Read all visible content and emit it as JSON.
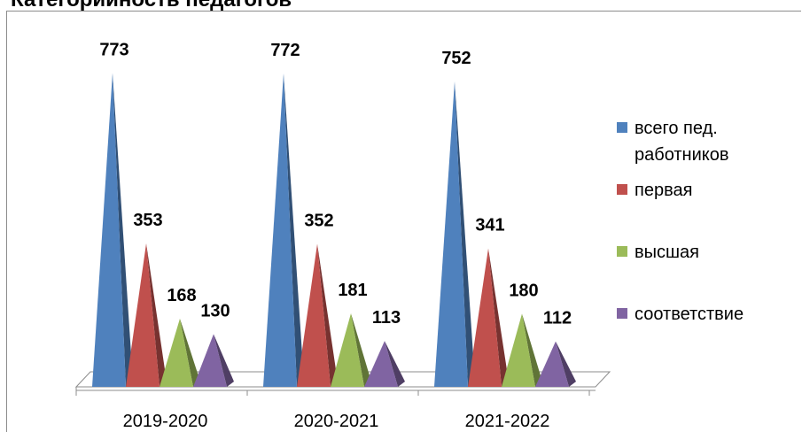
{
  "chart_data": {
    "type": "bar",
    "title": "Категорийность педагогов",
    "categories": [
      "2019-2020",
      "2020-2021",
      "2021-2022"
    ],
    "series": [
      {
        "name": "всего пед. работников",
        "values": [
          773,
          772,
          752
        ],
        "color": "#4f81bd"
      },
      {
        "name": "первая",
        "values": [
          353,
          352,
          341
        ],
        "color": "#c0504d"
      },
      {
        "name": "высшая",
        "values": [
          168,
          181,
          180
        ],
        "color": "#9bbb59"
      },
      {
        "name": "соответствие",
        "values": [
          130,
          113,
          112
        ],
        "color": "#8064a2"
      }
    ],
    "ylim": [
      0,
      800
    ],
    "grid": false,
    "legend": "right",
    "shape": "pyramid"
  }
}
